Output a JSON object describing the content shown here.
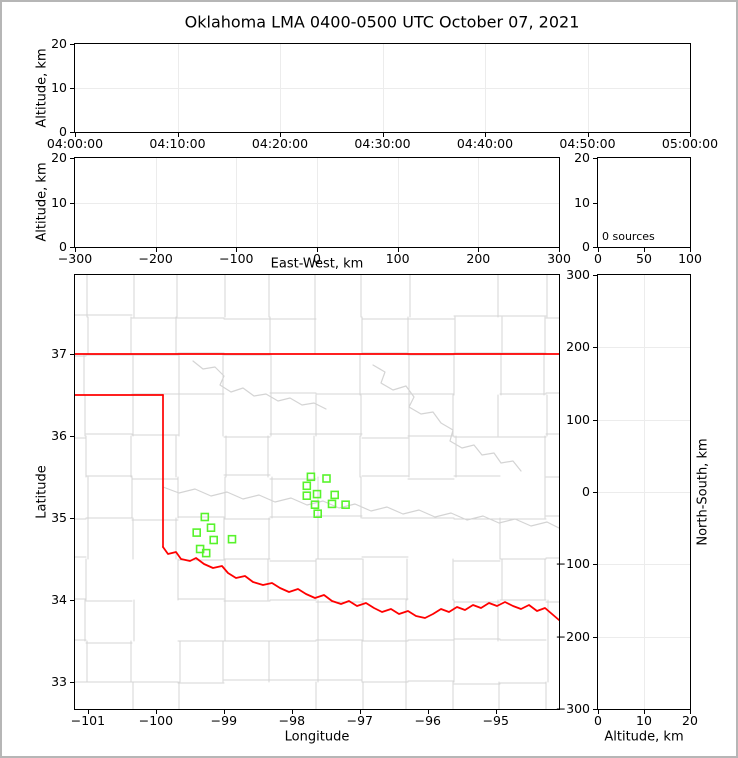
{
  "title": "Oklahoma LMA 0400-0500 UTC October 07, 2021",
  "colors": {
    "frame": "#b6b6b6",
    "axis": "#000000",
    "gridline": "#ececec",
    "county_lines": "#d4d4d4",
    "river_lines": "#d4d4d4",
    "state_border": "#ff0000",
    "station_marker": "#58f32c"
  },
  "panels": {
    "time_height": {
      "ylabel": "Altitude, km",
      "ytick_labels": [
        "0",
        "10",
        "20"
      ],
      "xtick_labels": [
        "04:00:00",
        "04:10:00",
        "04:20:00",
        "04:30:00",
        "04:40:00",
        "04:50:00",
        "05:00:00"
      ]
    },
    "ew_height": {
      "ylabel": "Altitude, km",
      "xlabel": "East-West, km",
      "ytick_labels": [
        "0",
        "10",
        "20"
      ],
      "xtick_labels": [
        "−300",
        "−200",
        "−100",
        "0",
        "100",
        "200",
        "300"
      ]
    },
    "alt_histogram": {
      "annotation": "0 sources",
      "ytick_labels": [
        "0",
        "10",
        "20"
      ],
      "xtick_labels": [
        "0",
        "50",
        "100"
      ]
    },
    "map": {
      "ylabel": "Latitude",
      "xlabel": "Longitude",
      "ytick_labels": [
        "33",
        "34",
        "35",
        "36",
        "37"
      ],
      "xtick_labels": [
        "−101",
        "−100",
        "−99",
        "−98",
        "−97",
        "−96",
        "−95"
      ]
    },
    "ns_height": {
      "xlabel": "Altitude, km",
      "ylabel": "North-South, km",
      "ytick_labels": [
        "−300",
        "−200",
        "−100",
        "0",
        "100",
        "200",
        "300"
      ],
      "xtick_labels": [
        "0",
        "10",
        "20"
      ]
    }
  },
  "chart_data": {
    "type": "scatter",
    "title": "Oklahoma LMA 0400-0500 UTC October 07, 2021",
    "source_count": 0,
    "source_count_label": "0 sources",
    "time_window_utc": [
      "04:00:00",
      "05:00:00"
    ],
    "altitude_axis_km": {
      "min": 0,
      "max": 20,
      "ticks": [
        0,
        10,
        20
      ]
    },
    "east_west_axis_km": {
      "min": -300,
      "max": 300,
      "tick_step": 100
    },
    "north_south_axis_km": {
      "min": -300,
      "max": 300,
      "tick_step": 100
    },
    "histogram_axis_sources": {
      "min": 0,
      "max": 100,
      "ticks": [
        0,
        50,
        100
      ]
    },
    "map": {
      "lon_range": [
        -101.19,
        -94.07
      ],
      "lat_range": [
        32.67,
        37.96
      ],
      "lon_ticks": [
        -101,
        -100,
        -99,
        -98,
        -97,
        -96,
        -95
      ],
      "lat_ticks": [
        33,
        34,
        35,
        36,
        37
      ]
    },
    "lma_stations_lonlat": [
      [
        -97.72,
        35.5
      ],
      [
        -97.49,
        35.48
      ],
      [
        -97.78,
        35.39
      ],
      [
        -97.63,
        35.29
      ],
      [
        -97.78,
        35.27
      ],
      [
        -97.37,
        35.28
      ],
      [
        -97.66,
        35.16
      ],
      [
        -97.41,
        35.17
      ],
      [
        -97.21,
        35.16
      ],
      [
        -97.62,
        35.05
      ],
      [
        -99.28,
        35.01
      ],
      [
        -99.19,
        34.88
      ],
      [
        -99.4,
        34.82
      ],
      [
        -99.15,
        34.73
      ],
      [
        -98.88,
        34.74
      ],
      [
        -99.35,
        34.62
      ],
      [
        -99.26,
        34.57
      ]
    ],
    "lightning_sources": []
  }
}
